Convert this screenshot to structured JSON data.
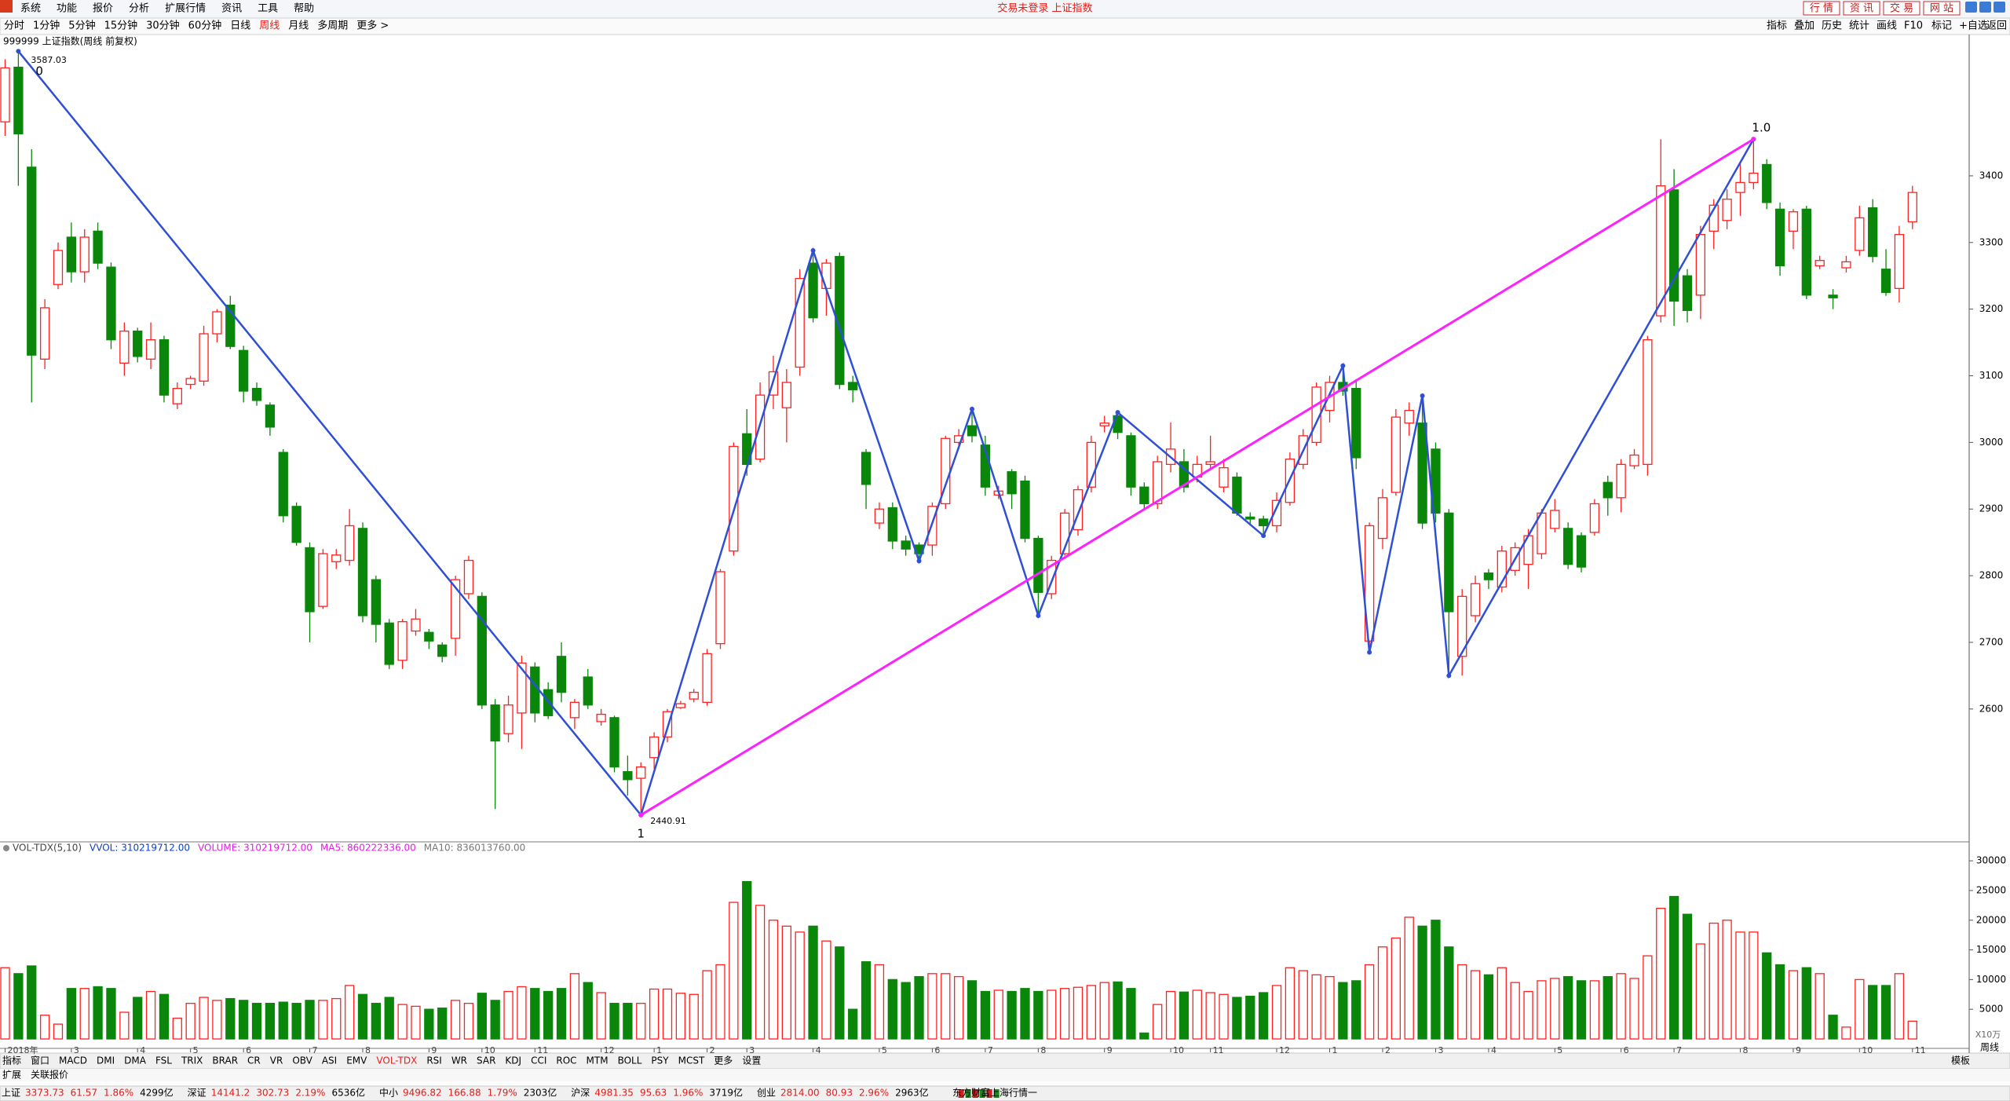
{
  "menu": {
    "items": [
      "系统",
      "功能",
      "报价",
      "分析",
      "扩展行情",
      "资讯",
      "工具",
      "帮助"
    ],
    "title": "交易未登录 上证指数",
    "buttons": [
      "行 情",
      "资 讯",
      "交 易",
      "网 站"
    ]
  },
  "toolbar": {
    "periods": [
      "分时",
      "1分钟",
      "5分钟",
      "15分钟",
      "30分钟",
      "60分钟",
      "日线",
      "周线",
      "月线",
      "多周期",
      "更多 >"
    ],
    "tools": [
      "指标",
      "叠加",
      "历史",
      "统计",
      "画线",
      "F10",
      "标记",
      "+自选",
      "返回"
    ]
  },
  "chart_data": {
    "type": "candlestick",
    "title": "999999 上证指数(周线 前复权)",
    "up_color": "#ff2020",
    "down_color": "#0a870a",
    "ylim": [
      2403,
      3612
    ],
    "yticks": [
      2600,
      2700,
      2800,
      2900,
      3000,
      3100,
      3200,
      3300,
      3400
    ],
    "candles": [
      [
        3481,
        3575,
        3460,
        3562
      ],
      [
        3563,
        3587.03,
        3385,
        3463
      ],
      [
        3413,
        3440,
        3060,
        3131
      ],
      [
        3125,
        3215,
        3110,
        3202
      ],
      [
        3237,
        3300,
        3230,
        3288
      ],
      [
        3308,
        3330,
        3240,
        3256
      ],
      [
        3256,
        3320,
        3240,
        3308
      ],
      [
        3317,
        3330,
        3260,
        3269
      ],
      [
        3263,
        3270,
        3140,
        3154
      ],
      [
        3119,
        3180,
        3100,
        3167
      ],
      [
        3167,
        3172,
        3120,
        3129
      ],
      [
        3125,
        3180,
        3110,
        3154
      ],
      [
        3154,
        3160,
        3060,
        3071
      ],
      [
        3058,
        3090,
        3050,
        3081
      ],
      [
        3087,
        3100,
        3080,
        3096
      ],
      [
        3092,
        3175,
        3085,
        3163
      ],
      [
        3163,
        3200,
        3150,
        3196
      ],
      [
        3206,
        3220,
        3140,
        3144
      ],
      [
        3138,
        3145,
        3060,
        3077
      ],
      [
        3081,
        3090,
        3055,
        3063
      ],
      [
        3056,
        3060,
        3010,
        3023
      ],
      [
        2985,
        2990,
        2880,
        2890
      ],
      [
        2904,
        2910,
        2845,
        2850
      ],
      [
        2842,
        2850,
        2700,
        2746
      ],
      [
        2754,
        2840,
        2750,
        2833
      ],
      [
        2821,
        2840,
        2810,
        2831
      ],
      [
        2823,
        2900,
        2815,
        2875
      ],
      [
        2871,
        2880,
        2730,
        2740
      ],
      [
        2794,
        2800,
        2700,
        2727
      ],
      [
        2729,
        2735,
        2660,
        2667
      ],
      [
        2673,
        2735,
        2660,
        2731
      ],
      [
        2717,
        2750,
        2710,
        2735
      ],
      [
        2715,
        2720,
        2690,
        2702
      ],
      [
        2696,
        2700,
        2670,
        2679
      ],
      [
        2706,
        2800,
        2680,
        2794
      ],
      [
        2773,
        2830,
        2765,
        2823
      ],
      [
        2769,
        2775,
        2600,
        2606
      ],
      [
        2606,
        2615,
        2450,
        2552
      ],
      [
        2563,
        2620,
        2550,
        2606
      ],
      [
        2594,
        2680,
        2540,
        2669
      ],
      [
        2663,
        2670,
        2580,
        2594
      ],
      [
        2629,
        2640,
        2585,
        2590
      ],
      [
        2679,
        2700,
        2610,
        2625
      ],
      [
        2587,
        2615,
        2570,
        2610
      ],
      [
        2648,
        2660,
        2600,
        2606
      ],
      [
        2581,
        2600,
        2575,
        2592
      ],
      [
        2587,
        2590,
        2505,
        2513
      ],
      [
        2506,
        2530,
        2470,
        2494
      ],
      [
        2496,
        2520,
        2440.91,
        2513
      ],
      [
        2527,
        2565,
        2510,
        2558
      ],
      [
        2558,
        2600,
        2550,
        2596
      ],
      [
        2602,
        2612,
        2600,
        2608
      ],
      [
        2615,
        2630,
        2610,
        2625
      ],
      [
        2610,
        2690,
        2605,
        2683
      ],
      [
        2698,
        2810,
        2690,
        2806
      ],
      [
        2837,
        3000,
        2830,
        2994
      ],
      [
        3013,
        3050,
        2950,
        2967
      ],
      [
        2975,
        3090,
        2970,
        3071
      ],
      [
        3071,
        3130,
        3050,
        3106
      ],
      [
        3052,
        3110,
        3000,
        3090
      ],
      [
        3113,
        3260,
        3100,
        3246
      ],
      [
        3269,
        3288,
        3180,
        3187
      ],
      [
        3231,
        3275,
        3190,
        3269
      ],
      [
        3279,
        3285,
        3080,
        3087
      ],
      [
        3090,
        3100,
        3060,
        3079
      ],
      [
        2985,
        2990,
        2900,
        2937
      ],
      [
        2879,
        2910,
        2870,
        2900
      ],
      [
        2902,
        2910,
        2840,
        2852
      ],
      [
        2852,
        2860,
        2830,
        2840
      ],
      [
        2846,
        2850,
        2822,
        2833
      ],
      [
        2846,
        2910,
        2830,
        2904
      ],
      [
        2908,
        3010,
        2900,
        3006
      ],
      [
        3000,
        3020,
        2990,
        3010
      ],
      [
        3025,
        3050,
        3000,
        3010
      ],
      [
        2996,
        3010,
        2920,
        2933
      ],
      [
        2921,
        2935,
        2915,
        2927
      ],
      [
        2956,
        2960,
        2900,
        2923
      ],
      [
        2942,
        2950,
        2850,
        2856
      ],
      [
        2856,
        2860,
        2740,
        2775
      ],
      [
        2773,
        2830,
        2765,
        2823
      ],
      [
        2833,
        2900,
        2830,
        2894
      ],
      [
        2869,
        2935,
        2860,
        2929
      ],
      [
        2933,
        3010,
        2925,
        3000
      ],
      [
        3025,
        3040,
        3015,
        3029
      ],
      [
        3040,
        3045,
        3005,
        3015
      ],
      [
        3010,
        3015,
        2920,
        2933
      ],
      [
        2933,
        2940,
        2900,
        2908
      ],
      [
        2908,
        2980,
        2900,
        2971
      ],
      [
        2967,
        3030,
        2955,
        2990
      ],
      [
        2971,
        2990,
        2925,
        2933
      ],
      [
        2948,
        2980,
        2940,
        2967
      ],
      [
        2967,
        3010,
        2960,
        2971
      ],
      [
        2933,
        2975,
        2925,
        2962
      ],
      [
        2948,
        2955,
        2890,
        2894
      ],
      [
        2888,
        2895,
        2875,
        2885
      ],
      [
        2885,
        2890,
        2860,
        2875
      ],
      [
        2875,
        2925,
        2865,
        2913
      ],
      [
        2910,
        2985,
        2905,
        2975
      ],
      [
        2967,
        3020,
        2960,
        3010
      ],
      [
        3000,
        3090,
        2995,
        3083
      ],
      [
        3048,
        3100,
        3030,
        3090
      ],
      [
        3090,
        3115,
        3070,
        3077
      ],
      [
        3081,
        3095,
        2960,
        2977
      ],
      [
        2702,
        2880,
        2685,
        2875
      ],
      [
        2856,
        2930,
        2840,
        2917
      ],
      [
        2925,
        3050,
        2920,
        3038
      ],
      [
        3029,
        3060,
        3010,
        3048
      ],
      [
        3029,
        3070,
        2870,
        2879
      ],
      [
        2990,
        3000,
        2880,
        2894
      ],
      [
        2894,
        2900,
        2650,
        2746
      ],
      [
        2679,
        2780,
        2650,
        2769
      ],
      [
        2740,
        2800,
        2730,
        2788
      ],
      [
        2804,
        2810,
        2780,
        2794
      ],
      [
        2783,
        2845,
        2775,
        2837
      ],
      [
        2808,
        2850,
        2800,
        2842
      ],
      [
        2817,
        2870,
        2780,
        2860
      ],
      [
        2833,
        2900,
        2825,
        2894
      ],
      [
        2871,
        2915,
        2865,
        2898
      ],
      [
        2871,
        2880,
        2810,
        2817
      ],
      [
        2860,
        2865,
        2805,
        2813
      ],
      [
        2865,
        2915,
        2860,
        2908
      ],
      [
        2940,
        2950,
        2890,
        2917
      ],
      [
        2917,
        2975,
        2895,
        2967
      ],
      [
        2965,
        2990,
        2960,
        2981
      ],
      [
        2967,
        3160,
        2950,
        3154
      ],
      [
        3190,
        3455,
        3180,
        3385
      ],
      [
        3379,
        3410,
        3175,
        3212
      ],
      [
        3250,
        3260,
        3180,
        3198
      ],
      [
        3221,
        3325,
        3185,
        3312
      ],
      [
        3317,
        3365,
        3290,
        3356
      ],
      [
        3333,
        3380,
        3320,
        3365
      ],
      [
        3375,
        3420,
        3340,
        3390
      ],
      [
        3390,
        3455,
        3380,
        3404
      ],
      [
        3417,
        3425,
        3350,
        3360
      ],
      [
        3350,
        3360,
        3250,
        3265
      ],
      [
        3317,
        3350,
        3290,
        3346
      ],
      [
        3350,
        3355,
        3215,
        3221
      ],
      [
        3265,
        3280,
        3260,
        3273
      ],
      [
        3221,
        3230,
        3200,
        3217
      ],
      [
        3262,
        3280,
        3255,
        3271
      ],
      [
        3288,
        3355,
        3280,
        3337
      ],
      [
        3352,
        3365,
        3270,
        3279
      ],
      [
        3260,
        3290,
        3220,
        3225
      ],
      [
        3231,
        3325,
        3210,
        3312
      ],
      [
        3331,
        3385,
        3320,
        3375
      ]
    ],
    "volumes": [
      12000,
      11000,
      12300,
      4000,
      2500,
      8500,
      8500,
      8800,
      8500,
      4500,
      7000,
      8000,
      7500,
      3500,
      6000,
      7000,
      6500,
      6800,
      6500,
      6000,
      6000,
      6200,
      6000,
      6500,
      6500,
      6800,
      9000,
      7500,
      6000,
      7000,
      5800,
      5500,
      5000,
      5200,
      6500,
      6000,
      7700,
      6500,
      8000,
      8800,
      8500,
      8000,
      8500,
      11000,
      9500,
      7800,
      6000,
      6000,
      6000,
      8400,
      8400,
      7700,
      7500,
      11500,
      12500,
      23000,
      26500,
      22500,
      20000,
      19000,
      18000,
      19000,
      16500,
      15500,
      5000,
      13000,
      12500,
      10000,
      9500,
      10500,
      11000,
      11000,
      10500,
      9800,
      8000,
      8200,
      8000,
      8500,
      8000,
      8200,
      8500,
      8700,
      9000,
      9500,
      9600,
      8500,
      1000,
      5800,
      8000,
      7900,
      8200,
      7800,
      7500,
      7000,
      7200,
      7800,
      9000,
      12000,
      11500,
      10800,
      10500,
      9500,
      9800,
      12500,
      15500,
      17000,
      20500,
      19000,
      20000,
      15500,
      12500,
      11500,
      10800,
      12000,
      9500,
      8000,
      9800,
      10200,
      10500,
      9800,
      9800,
      10500,
      11000,
      10200,
      14000,
      22000,
      24000,
      21000,
      16000,
      19500,
      20000,
      18000,
      18000,
      14500,
      12500,
      11500,
      12000,
      11000,
      4000,
      2000,
      10000,
      9000,
      9000,
      11000,
      3000
    ],
    "vylim": [
      0,
      32400
    ],
    "vyticks": [
      5000,
      10000,
      15000,
      20000,
      25000,
      30000
    ],
    "xticks": [
      {
        "value": 0,
        "label": "2018年"
      },
      {
        "value": 5,
        "label": "3"
      },
      {
        "value": 10,
        "label": "4"
      },
      {
        "value": 14,
        "label": "5"
      },
      {
        "value": 18,
        "label": "6"
      },
      {
        "value": 23,
        "label": "7"
      },
      {
        "value": 27,
        "label": "8"
      },
      {
        "value": 32,
        "label": "9"
      },
      {
        "value": 36,
        "label": "10"
      },
      {
        "value": 40,
        "label": "11"
      },
      {
        "value": 45,
        "label": "12"
      },
      {
        "value": 49,
        "label": "1"
      },
      {
        "value": 53,
        "label": "2"
      },
      {
        "value": 56,
        "label": "3"
      },
      {
        "value": 61,
        "label": "4"
      },
      {
        "value": 66,
        "label": "5"
      },
      {
        "value": 70,
        "label": "6"
      },
      {
        "value": 74,
        "label": "7"
      },
      {
        "value": 78,
        "label": "8"
      },
      {
        "value": 83,
        "label": "9"
      },
      {
        "value": 88,
        "label": "10"
      },
      {
        "value": 91,
        "label": "11"
      },
      {
        "value": 96,
        "label": "12"
      },
      {
        "value": 100,
        "label": "1"
      },
      {
        "value": 104,
        "label": "2"
      },
      {
        "value": 108,
        "label": "3"
      },
      {
        "value": 112,
        "label": "4"
      },
      {
        "value": 117,
        "label": "5"
      },
      {
        "value": 122,
        "label": "6"
      },
      {
        "value": 126,
        "label": "7"
      },
      {
        "value": 131,
        "label": "8"
      },
      {
        "value": 135,
        "label": "9"
      },
      {
        "value": 140,
        "label": "10"
      },
      {
        "value": 144,
        "label": "11"
      }
    ],
    "lines": [
      {
        "color": "#2e4fd6",
        "points": [
          [
            1,
            3587.03
          ],
          [
            48,
            2440.91
          ],
          [
            61,
            3288
          ],
          [
            69,
            2822
          ],
          [
            73,
            3050
          ],
          [
            78,
            2740
          ],
          [
            84,
            3045
          ],
          [
            95,
            2860
          ],
          [
            101,
            3115
          ],
          [
            103,
            2685
          ],
          [
            107,
            3070
          ],
          [
            109,
            2650
          ],
          [
            132,
            3455
          ]
        ]
      },
      {
        "color": "#ff20ff",
        "points": [
          [
            48,
            2440.91
          ],
          [
            132,
            3455
          ]
        ]
      }
    ],
    "trend_labels": {
      "start": "0",
      "bottom": "1",
      "end": "1.0"
    },
    "volume_header": [
      "VOL-TDX(5,10)",
      "VVOL: 310219712.00",
      "VOLUME: 310219712.00",
      "MA5: 860222336.00",
      "MA10: 836013760.00"
    ],
    "volume_unit": "X10万",
    "period": "周线"
  },
  "tabs": [
    "指标",
    "窗口",
    "MACD",
    "DMI",
    "DMA",
    "FSL",
    "TRIX",
    "BRAR",
    "CR",
    "VR",
    "OBV",
    "ASI",
    "EMV",
    "VOL-TDX",
    "RSI",
    "WR",
    "SAR",
    "KDJ",
    "CCI",
    "ROC",
    "MTM",
    "BOLL",
    "PSY",
    "MCST",
    "更多",
    "设置"
  ],
  "template": "模板",
  "ext_tabs": [
    "扩展",
    "关联报价"
  ],
  "status": [
    {
      "name": "上证",
      "values": [
        "3373.73",
        "61.57",
        "1.86%"
      ],
      "amount": "4299亿"
    },
    {
      "name": "深证",
      "values": [
        "14141.2",
        "302.73",
        "2.19%"
      ],
      "amount": "6536亿"
    },
    {
      "name": "中小",
      "values": [
        "9496.82",
        "166.88",
        "1.79%"
      ],
      "amount": "2303亿"
    },
    {
      "name": "沪深",
      "values": [
        "4981.35",
        "95.63",
        "1.96%"
      ],
      "amount": "3719亿"
    },
    {
      "name": "创业",
      "values": [
        "2814.00",
        "80.93",
        "2.96%"
      ],
      "amount": "2963亿"
    }
  ],
  "status_feed": "东方财富上海行情一"
}
